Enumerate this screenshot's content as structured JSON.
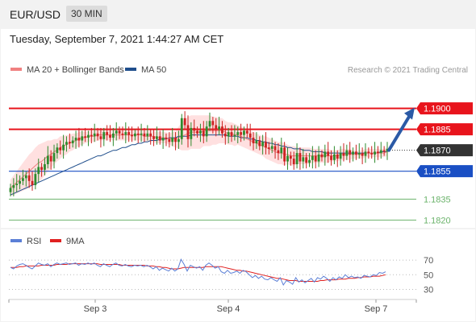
{
  "header": {
    "pair": "EUR/USD",
    "timeframe": "30 MIN"
  },
  "timestamp": "Tuesday, September 7, 2021 1:44:27 AM CET",
  "legend_main": [
    {
      "label": "MA 20 + Bollinger Bands",
      "color": "#f08080"
    },
    {
      "label": "MA 50",
      "color": "#1f4e8c"
    }
  ],
  "copyright": "Research © 2021 Trading Central",
  "legend_rsi": [
    {
      "label": "RSI",
      "color": "#5b7fd6"
    },
    {
      "label": "9MA",
      "color": "#e02020"
    }
  ],
  "colors": {
    "resistance": "#e8141c",
    "current": "#333333",
    "support_blue": "#1a4fc4",
    "support_green": "#6bb36b",
    "up": "#2e8b2e",
    "down": "#cc2222",
    "arrow": "#2b5aa6",
    "band": "#ffd6d6"
  },
  "chart_data": [
    {
      "type": "candlestick",
      "x_labels": [
        "Sep 3",
        "Sep 4",
        "Sep 7"
      ],
      "ylim": [
        1.1815,
        1.192
      ],
      "levels": [
        {
          "value": 1.19,
          "label": "1.1900",
          "kind": "resistance"
        },
        {
          "value": 1.1885,
          "label": "1.1885",
          "kind": "resistance"
        },
        {
          "value": 1.187,
          "label": "1.1870",
          "kind": "current"
        },
        {
          "value": 1.1855,
          "label": "1.1855",
          "kind": "support_blue"
        },
        {
          "value": 1.1835,
          "label": "1.1835",
          "kind": "support_green"
        },
        {
          "value": 1.182,
          "label": "1.1820",
          "kind": "support_green"
        }
      ],
      "close": [
        1.1843,
        1.1845,
        1.1846,
        1.1848,
        1.185,
        1.1852,
        1.1848,
        1.1845,
        1.1853,
        1.1858,
        1.1856,
        1.186,
        1.1866,
        1.1862,
        1.1868,
        1.1872,
        1.187,
        1.1874,
        1.1876,
        1.1875,
        1.1877,
        1.1879,
        1.1877,
        1.188,
        1.1879,
        1.1881,
        1.188,
        1.1882,
        1.188,
        1.1878,
        1.1883,
        1.1881,
        1.1879,
        1.1882,
        1.1884,
        1.1882,
        1.1881,
        1.1883,
        1.1881,
        1.188,
        1.1882,
        1.1881,
        1.1882,
        1.188,
        1.1882,
        1.188,
        1.1878,
        1.188,
        1.1877,
        1.1879,
        1.1878,
        1.1876,
        1.1879,
        1.1876,
        1.1878,
        1.1893,
        1.1888,
        1.1878,
        1.1886,
        1.1884,
        1.1882,
        1.1884,
        1.188,
        1.1887,
        1.1891,
        1.1888,
        1.1885,
        1.1887,
        1.1882,
        1.188,
        1.1883,
        1.188,
        1.1881,
        1.1883,
        1.1881,
        1.1884,
        1.1882,
        1.1879,
        1.1875,
        1.1877,
        1.1873,
        1.1876,
        1.1872,
        1.1871,
        1.1873,
        1.187,
        1.1868,
        1.1872,
        1.1862,
        1.1866,
        1.1864,
        1.186,
        1.1868,
        1.1862,
        1.1865,
        1.1861,
        1.1863,
        1.1866,
        1.1862,
        1.1867,
        1.1865,
        1.1869,
        1.1866,
        1.1863,
        1.1867,
        1.1864,
        1.1868,
        1.1866,
        1.187,
        1.1867,
        1.1869,
        1.1867,
        1.1868,
        1.1866,
        1.1869,
        1.1868,
        1.1867,
        1.1869,
        1.1868,
        1.187,
        1.1869,
        1.1871
      ],
      "ma20": [
        1.1843,
        1.1845,
        1.1847,
        1.1849,
        1.1851,
        1.1853,
        1.1855,
        1.1857,
        1.1859,
        1.1861,
        1.1862,
        1.1864,
        1.1866,
        1.1867,
        1.1869,
        1.187,
        1.1872,
        1.1873,
        1.1874,
        1.1875,
        1.1876,
        1.1877,
        1.1878,
        1.1879,
        1.1879,
        1.188,
        1.188,
        1.188,
        1.1881,
        1.1881,
        1.1881,
        1.1881,
        1.1881,
        1.1881,
        1.1881,
        1.1881,
        1.1881,
        1.1881,
        1.1881,
        1.1881,
        1.1881,
        1.1881,
        1.1881,
        1.188,
        1.188,
        1.188,
        1.188,
        1.1879,
        1.1879,
        1.1879,
        1.1879,
        1.1878,
        1.1878,
        1.1878,
        1.1879,
        1.188,
        1.1881,
        1.1882,
        1.1883,
        1.1883,
        1.1883,
        1.1883,
        1.1884,
        1.1884,
        1.1884,
        1.1884,
        1.1884,
        1.1884,
        1.1884,
        1.1883,
        1.1882,
        1.1882,
        1.1881,
        1.1881,
        1.188,
        1.1879,
        1.1878,
        1.1877,
        1.1876,
        1.1875,
        1.1874,
        1.1873,
        1.1872,
        1.1871,
        1.187,
        1.1869,
        1.1868,
        1.1868,
        1.1867,
        1.1867,
        1.1866,
        1.1866,
        1.1866,
        1.1866,
        1.1866,
        1.1866,
        1.1866,
        1.1866,
        1.1866,
        1.1866,
        1.1866,
        1.1866,
        1.1866,
        1.1866,
        1.1866,
        1.1866,
        1.1867,
        1.1867,
        1.1867,
        1.1867,
        1.1867,
        1.1867,
        1.1867,
        1.1867,
        1.1868,
        1.1868,
        1.1868,
        1.1868,
        1.1868,
        1.1868,
        1.1868,
        1.1869
      ],
      "ma50": [
        1.1838,
        1.1839,
        1.184,
        1.1841,
        1.1842,
        1.1843,
        1.1844,
        1.1845,
        1.1846,
        1.1847,
        1.1848,
        1.1849,
        1.185,
        1.1851,
        1.1852,
        1.1853,
        1.1854,
        1.1855,
        1.1856,
        1.1857,
        1.1858,
        1.1859,
        1.186,
        1.1861,
        1.1862,
        1.1863,
        1.1864,
        1.1865,
        1.1866,
        1.1866,
        1.1867,
        1.1868,
        1.1869,
        1.187,
        1.187,
        1.1871,
        1.1872,
        1.1872,
        1.1873,
        1.1874,
        1.1874,
        1.1875,
        1.1875,
        1.1876,
        1.1876,
        1.1877,
        1.1877,
        1.1877,
        1.1878,
        1.1878,
        1.1878,
        1.1879,
        1.1879,
        1.1879,
        1.188,
        1.188,
        1.188,
        1.188,
        1.1881,
        1.1881,
        1.1881,
        1.1881,
        1.1881,
        1.1881,
        1.1881,
        1.1881,
        1.1881,
        1.1881,
        1.1881,
        1.1881,
        1.188,
        1.188,
        1.188,
        1.188,
        1.1879,
        1.1879,
        1.1879,
        1.1878,
        1.1878,
        1.1877,
        1.1877,
        1.1876,
        1.1876,
        1.1875,
        1.1875,
        1.1874,
        1.1874,
        1.1873,
        1.1873,
        1.1872,
        1.1872,
        1.1871,
        1.1871,
        1.1871,
        1.187,
        1.187,
        1.187,
        1.1869,
        1.1869,
        1.1869,
        1.1869,
        1.1868,
        1.1868,
        1.1868,
        1.1868,
        1.1868,
        1.1868,
        1.1868,
        1.1868,
        1.1868,
        1.1868,
        1.1868,
        1.1868,
        1.1868,
        1.1868,
        1.1868,
        1.1868,
        1.1868,
        1.1868,
        1.1869,
        1.1869,
        1.1869
      ],
      "band_width": [
        0.0006,
        0.0007,
        0.0008,
        0.0009,
        0.001,
        0.0011,
        0.0012,
        0.0012,
        0.0013,
        0.0013,
        0.0013,
        0.0012,
        0.0011,
        0.001,
        0.0009,
        0.0008,
        0.0008,
        0.0007,
        0.0007,
        0.0006,
        0.0006,
        0.0005,
        0.0005,
        0.0005,
        0.0004,
        0.0004,
        0.0004,
        0.0004,
        0.0004,
        0.0004,
        0.0004,
        0.0004,
        0.0004,
        0.0004,
        0.0004,
        0.0004,
        0.0004,
        0.0004,
        0.0004,
        0.0004,
        0.0004,
        0.0004,
        0.0004,
        0.0004,
        0.0004,
        0.0004,
        0.0004,
        0.0004,
        0.0004,
        0.0004,
        0.0004,
        0.0004,
        0.0005,
        0.0006,
        0.0008,
        0.001,
        0.0011,
        0.0012,
        0.0012,
        0.0012,
        0.0012,
        0.0012,
        0.0011,
        0.0011,
        0.0011,
        0.001,
        0.001,
        0.0009,
        0.0009,
        0.0008,
        0.0008,
        0.0008,
        0.0008,
        0.0007,
        0.0007,
        0.0007,
        0.0007,
        0.0007,
        0.0007,
        0.0007,
        0.0007,
        0.0007,
        0.0008,
        0.0008,
        0.0008,
        0.0008,
        0.0008,
        0.0008,
        0.0008,
        0.0007,
        0.0007,
        0.0007,
        0.0006,
        0.0006,
        0.0006,
        0.0006,
        0.0006,
        0.0005,
        0.0005,
        0.0005,
        0.0005,
        0.0005,
        0.0005,
        0.0004,
        0.0004,
        0.0004,
        0.0004,
        0.0004,
        0.0004,
        0.0004,
        0.0003,
        0.0003,
        0.0003,
        0.0003,
        0.0003,
        0.0003,
        0.0003,
        0.0003,
        0.0003,
        0.0003,
        0.0003,
        0.0003
      ],
      "forecast_arrow": {
        "from": 1.187,
        "to": 1.19
      }
    },
    {
      "type": "line",
      "ylim": [
        25,
        80
      ],
      "tick_labels": [
        "70",
        "50",
        "30"
      ],
      "ticks": [
        70,
        50,
        30
      ],
      "series": [
        {
          "name": "RSI",
          "values": [
            60,
            58,
            62,
            64,
            65,
            63,
            60,
            58,
            62,
            66,
            64,
            63,
            65,
            61,
            64,
            66,
            64,
            65,
            66,
            64,
            65,
            66,
            63,
            65,
            64,
            66,
            64,
            66,
            63,
            61,
            65,
            63,
            61,
            64,
            66,
            63,
            62,
            64,
            62,
            61,
            63,
            62,
            63,
            61,
            63,
            61,
            58,
            61,
            56,
            59,
            57,
            55,
            59,
            55,
            58,
            71,
            64,
            55,
            63,
            61,
            59,
            61,
            56,
            63,
            66,
            63,
            59,
            61,
            54,
            52,
            56,
            52,
            53,
            55,
            52,
            56,
            54,
            50,
            46,
            49,
            45,
            48,
            44,
            43,
            46,
            43,
            41,
            46,
            36,
            42,
            40,
            37,
            46,
            40,
            43,
            39,
            42,
            45,
            40,
            46,
            44,
            48,
            45,
            41,
            46,
            43,
            47,
            45,
            50,
            46,
            48,
            46,
            47,
            45,
            49,
            48,
            47,
            50,
            49,
            53,
            52,
            54
          ]
        },
        {
          "name": "9MA",
          "values": [
            60,
            60,
            60,
            61,
            61,
            62,
            62,
            62,
            62,
            62,
            63,
            63,
            63,
            63,
            63,
            64,
            64,
            64,
            64,
            65,
            65,
            65,
            65,
            65,
            65,
            65,
            65,
            65,
            65,
            64,
            64,
            64,
            64,
            64,
            64,
            64,
            63,
            63,
            63,
            63,
            63,
            63,
            63,
            63,
            62,
            62,
            62,
            61,
            61,
            60,
            60,
            59,
            58,
            58,
            58,
            59,
            60,
            60,
            60,
            60,
            60,
            60,
            60,
            61,
            61,
            61,
            61,
            61,
            61,
            60,
            59,
            58,
            57,
            56,
            56,
            55,
            55,
            54,
            53,
            52,
            51,
            50,
            49,
            48,
            47,
            46,
            45,
            45,
            44,
            43,
            42,
            42,
            42,
            41,
            41,
            41,
            41,
            41,
            41,
            41,
            42,
            42,
            43,
            43,
            43,
            43,
            44,
            44,
            44,
            45,
            45,
            45,
            46,
            46,
            47,
            47,
            47,
            48,
            48,
            48,
            49,
            50
          ]
        }
      ]
    }
  ]
}
